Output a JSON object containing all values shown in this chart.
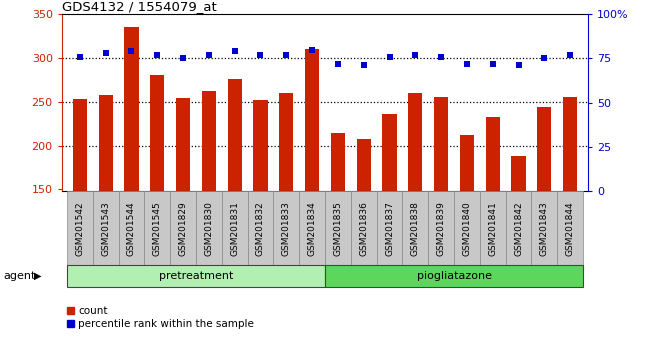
{
  "title": "GDS4132 / 1554079_at",
  "samples": [
    "GSM201542",
    "GSM201543",
    "GSM201544",
    "GSM201545",
    "GSM201829",
    "GSM201830",
    "GSM201831",
    "GSM201832",
    "GSM201833",
    "GSM201834",
    "GSM201835",
    "GSM201836",
    "GSM201837",
    "GSM201838",
    "GSM201839",
    "GSM201840",
    "GSM201841",
    "GSM201842",
    "GSM201843",
    "GSM201844"
  ],
  "counts": [
    253,
    258,
    335,
    280,
    254,
    262,
    276,
    252,
    260,
    310,
    214,
    207,
    236,
    260,
    255,
    212,
    233,
    188,
    244,
    255
  ],
  "percentiles": [
    76,
    78,
    79,
    77,
    75,
    77,
    79,
    77,
    77,
    80,
    72,
    71,
    76,
    77,
    76,
    72,
    72,
    71,
    75,
    77
  ],
  "groups": {
    "pretreatment": [
      0,
      9
    ],
    "piogliatazone": [
      10,
      19
    ]
  },
  "group_colors": {
    "pretreatment": "#b2f0b2",
    "piogliatazone": "#5CD65C"
  },
  "bar_color": "#CC2200",
  "dot_color": "#0000CC",
  "ylim_left": [
    148,
    350
  ],
  "ylim_right": [
    0,
    100
  ],
  "yticks_left": [
    150,
    200,
    250,
    300,
    350
  ],
  "yticks_right": [
    0,
    25,
    50,
    75,
    100
  ],
  "grid_values": [
    200,
    250,
    300
  ],
  "right_tick_labels": [
    "0",
    "25",
    "50",
    "75",
    "100%"
  ],
  "xtick_bg": "#C8C8C8",
  "bar_width": 0.55
}
